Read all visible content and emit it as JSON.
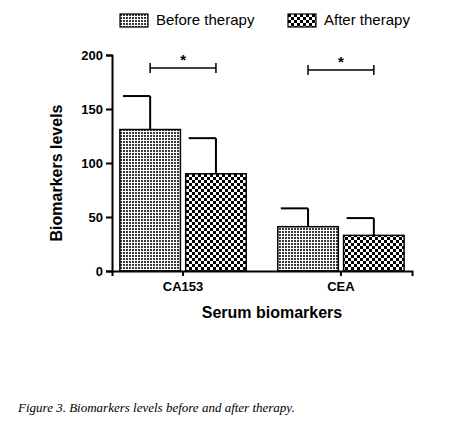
{
  "chart_data": {
    "type": "bar",
    "x_label": "Serum biomarkers",
    "y_label": "Biomarkers levels",
    "caption": "Figure 3. Biomarkers levels before and after therapy.",
    "categories": [
      "CA153",
      "CEA"
    ],
    "series": [
      {
        "name": "Before therapy",
        "color": "#3a3a3a",
        "values": [
          131,
          41
        ],
        "errors": [
          31,
          17
        ]
      },
      {
        "name": "After therapy",
        "color": "#000000",
        "values": [
          90,
          33
        ],
        "errors": [
          33,
          16
        ]
      }
    ],
    "ylim": [
      0,
      200
    ],
    "yticks": [
      0,
      50,
      100,
      150,
      200
    ],
    "grid": false,
    "legend": "top",
    "annotations": [
      {
        "text": "*",
        "category": 0,
        "y": 188
      },
      {
        "text": "*",
        "category": 1,
        "y": 186
      }
    ]
  }
}
